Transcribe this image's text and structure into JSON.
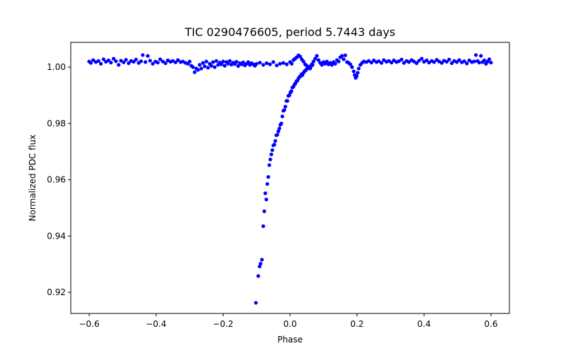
{
  "chart_data": {
    "type": "scatter",
    "title": "TIC 0290476605, period 5.7443 days",
    "xlabel": "Phase",
    "ylabel": "Normalized PDC flux",
    "xlim": [
      -0.655,
      0.655
    ],
    "ylim": [
      0.9125,
      1.0088
    ],
    "xticks": [
      -0.6,
      -0.4,
      -0.2,
      0.0,
      0.2,
      0.4,
      0.6
    ],
    "xtick_labels": [
      "−0.6",
      "−0.4",
      "−0.2",
      "0.0",
      "0.2",
      "0.4",
      "0.6"
    ],
    "yticks": [
      0.92,
      0.94,
      0.96,
      0.98,
      1.0
    ],
    "ytick_labels": [
      "0.92",
      "0.94",
      "0.96",
      "0.98",
      "1.00"
    ],
    "grid": false,
    "marker_color": "#0000ff",
    "series": [
      {
        "points": [
          [
            -0.6,
            1.002
          ],
          [
            -0.595,
            1.0015
          ],
          [
            -0.588,
            1.0025
          ],
          [
            -0.58,
            1.0018
          ],
          [
            -0.572,
            1.0022
          ],
          [
            -0.565,
            1.0012
          ],
          [
            -0.557,
            1.0028
          ],
          [
            -0.55,
            1.0019
          ],
          [
            -0.542,
            1.0024
          ],
          [
            -0.535,
            1.0016
          ],
          [
            -0.527,
            1.003
          ],
          [
            -0.52,
            1.0021
          ],
          [
            -0.512,
            1.0008
          ],
          [
            -0.505,
            1.0023
          ],
          [
            -0.497,
            1.0017
          ],
          [
            -0.49,
            1.0026
          ],
          [
            -0.482,
            1.0014
          ],
          [
            -0.475,
            1.0022
          ],
          [
            -0.467,
            1.0019
          ],
          [
            -0.46,
            1.0027
          ],
          [
            -0.452,
            1.0015
          ],
          [
            -0.445,
            1.0021
          ],
          [
            -0.44,
            1.0043
          ],
          [
            -0.432,
            1.0018
          ],
          [
            -0.425,
            1.004
          ],
          [
            -0.418,
            1.0023
          ],
          [
            -0.41,
            1.0012
          ],
          [
            -0.402,
            1.002
          ],
          [
            -0.395,
            1.0016
          ],
          [
            -0.388,
            1.0028
          ],
          [
            -0.38,
            1.002
          ],
          [
            -0.372,
            1.0014
          ],
          [
            -0.365,
            1.0024
          ],
          [
            -0.357,
            1.0019
          ],
          [
            -0.35,
            1.0022
          ],
          [
            -0.342,
            1.0017
          ],
          [
            -0.335,
            1.0025
          ],
          [
            -0.327,
            1.0018
          ],
          [
            -0.32,
            1.002
          ],
          [
            -0.312,
            1.0015
          ],
          [
            -0.305,
            1.0012
          ],
          [
            -0.3,
            1.002
          ],
          [
            -0.295,
            1.0005
          ],
          [
            -0.29,
            1.0
          ],
          [
            -0.285,
            0.9982
          ],
          [
            -0.28,
            0.9995
          ],
          [
            -0.275,
            0.999
          ],
          [
            -0.27,
            1.0008
          ],
          [
            -0.265,
            0.9995
          ],
          [
            -0.26,
            1.0015
          ],
          [
            -0.255,
            1.0003
          ],
          [
            -0.25,
            1.002
          ],
          [
            -0.245,
            0.9998
          ],
          [
            -0.24,
            1.0012
          ],
          [
            -0.235,
            1.0005
          ],
          [
            -0.23,
            1.0018
          ],
          [
            -0.225,
            1.0
          ],
          [
            -0.22,
            1.0022
          ],
          [
            -0.215,
            1.0008
          ],
          [
            -0.21,
            1.0016
          ],
          [
            -0.205,
            1.001
          ],
          [
            -0.2,
            1.002
          ],
          [
            -0.195,
            1.0005
          ],
          [
            -0.19,
            1.0018
          ],
          [
            -0.185,
            1.0012
          ],
          [
            -0.18,
            1.0022
          ],
          [
            -0.175,
            1.0009
          ],
          [
            -0.17,
            1.0016
          ],
          [
            -0.165,
            1.0011
          ],
          [
            -0.16,
            1.0019
          ],
          [
            -0.155,
            1.0004
          ],
          [
            -0.15,
            1.0014
          ],
          [
            -0.145,
            1.001
          ],
          [
            -0.14,
            1.0017
          ],
          [
            -0.135,
            1.0006
          ],
          [
            -0.13,
            1.0012
          ],
          [
            -0.125,
            1.0018
          ],
          [
            -0.12,
            1.0008
          ],
          [
            -0.115,
            1.0014
          ],
          [
            -0.11,
            1.001
          ],
          [
            -0.105,
            1.0005
          ],
          [
            -0.102,
            0.9163
          ],
          [
            -0.095,
            0.9258
          ],
          [
            -0.091,
            0.9292
          ],
          [
            -0.088,
            0.9302
          ],
          [
            -0.084,
            0.9316
          ],
          [
            -0.08,
            0.9435
          ],
          [
            -0.077,
            0.9488
          ],
          [
            -0.074,
            0.9552
          ],
          [
            -0.071,
            0.953
          ],
          [
            -0.068,
            0.9585
          ],
          [
            -0.065,
            0.961
          ],
          [
            -0.062,
            0.9652
          ],
          [
            -0.059,
            0.9672
          ],
          [
            -0.056,
            0.969
          ],
          [
            -0.053,
            0.9705
          ],
          [
            -0.05,
            0.9722
          ],
          [
            -0.047,
            0.9725
          ],
          [
            -0.044,
            0.9738
          ],
          [
            -0.041,
            0.9758
          ],
          [
            -0.038,
            0.976
          ],
          [
            -0.035,
            0.9772
          ],
          [
            -0.032,
            0.9782
          ],
          [
            -0.029,
            0.9795
          ],
          [
            -0.026,
            0.98
          ],
          [
            -0.023,
            0.9825
          ],
          [
            -0.02,
            0.9845
          ],
          [
            -0.017,
            0.9848
          ],
          [
            -0.014,
            0.986
          ],
          [
            -0.011,
            0.988
          ],
          [
            -0.008,
            0.988
          ],
          [
            -0.005,
            0.9898
          ],
          [
            -0.002,
            0.99
          ],
          [
            0.001,
            0.991
          ],
          [
            0.004,
            0.9915
          ],
          [
            0.007,
            0.9928
          ],
          [
            0.01,
            0.993
          ],
          [
            0.013,
            0.9938
          ],
          [
            0.016,
            0.9942
          ],
          [
            0.019,
            0.995
          ],
          [
            0.022,
            0.9952
          ],
          [
            0.025,
            0.996
          ],
          [
            0.028,
            0.9965
          ],
          [
            0.031,
            0.9968
          ],
          [
            0.034,
            0.9975
          ],
          [
            0.037,
            0.9972
          ],
          [
            0.04,
            0.998
          ],
          [
            0.043,
            0.9985
          ],
          [
            0.046,
            0.9988
          ],
          [
            0.049,
            0.9992
          ],
          [
            0.052,
            0.9995
          ],
          [
            0.055,
            0.9998
          ],
          [
            0.058,
            1.0
          ],
          [
            0.061,
            1.0003
          ],
          [
            0.064,
            1.0005
          ],
          [
            0.067,
            1.0008
          ],
          [
            -0.1,
            1.0012
          ],
          [
            -0.09,
            1.0016
          ],
          [
            -0.08,
            1.0008
          ],
          [
            -0.07,
            1.0014
          ],
          [
            -0.06,
            1.001
          ],
          [
            -0.05,
            1.0018
          ],
          [
            -0.04,
            1.0006
          ],
          [
            -0.03,
            1.0012
          ],
          [
            -0.02,
            1.0015
          ],
          [
            -0.01,
            1.001
          ],
          [
            0.0,
            1.0018
          ],
          [
            0.005,
            1.0012
          ],
          [
            0.01,
            1.0025
          ],
          [
            0.015,
            1.003
          ],
          [
            0.02,
            1.0035
          ],
          [
            0.025,
            1.0042
          ],
          [
            0.03,
            1.0038
          ],
          [
            0.035,
            1.0028
          ],
          [
            0.04,
            1.002
          ],
          [
            0.045,
            1.001
          ],
          [
            0.05,
            1.0005
          ],
          [
            0.055,
            1.0
          ],
          [
            0.06,
            0.9995
          ],
          [
            0.065,
            1.001
          ],
          [
            0.07,
            1.002
          ],
          [
            0.075,
            1.003
          ],
          [
            0.08,
            1.004
          ],
          [
            0.085,
            1.0025
          ],
          [
            0.09,
            1.0015
          ],
          [
            0.095,
            1.0008
          ],
          [
            0.1,
            1.0018
          ],
          [
            0.105,
            1.0012
          ],
          [
            0.11,
            1.002
          ],
          [
            0.115,
            1.001
          ],
          [
            0.12,
            1.0015
          ],
          [
            0.125,
            1.0008
          ],
          [
            0.13,
            1.0018
          ],
          [
            0.135,
            1.0012
          ],
          [
            0.14,
            1.0025
          ],
          [
            0.145,
            1.002
          ],
          [
            0.15,
            1.0035
          ],
          [
            0.155,
            1.004
          ],
          [
            0.16,
            1.0028
          ],
          [
            0.165,
            1.0042
          ],
          [
            0.17,
            1.0018
          ],
          [
            0.175,
            1.0015
          ],
          [
            0.18,
            1.001
          ],
          [
            0.185,
            1.0
          ],
          [
            0.19,
            0.9985
          ],
          [
            0.193,
            0.9972
          ],
          [
            0.196,
            0.9962
          ],
          [
            0.199,
            0.9968
          ],
          [
            0.202,
            0.998
          ],
          [
            0.205,
            0.9995
          ],
          [
            0.21,
            1.0008
          ],
          [
            0.215,
            1.0015
          ],
          [
            0.22,
            1.002
          ],
          [
            0.228,
            1.0018
          ],
          [
            0.235,
            1.0022
          ],
          [
            0.243,
            1.0016
          ],
          [
            0.25,
            1.0024
          ],
          [
            0.258,
            1.0018
          ],
          [
            0.265,
            1.0021
          ],
          [
            0.273,
            1.0015
          ],
          [
            0.28,
            1.0025
          ],
          [
            0.288,
            1.0019
          ],
          [
            0.295,
            1.0022
          ],
          [
            0.303,
            1.0016
          ],
          [
            0.31,
            1.0024
          ],
          [
            0.318,
            1.0018
          ],
          [
            0.325,
            1.0021
          ],
          [
            0.333,
            1.0027
          ],
          [
            0.34,
            1.0015
          ],
          [
            0.348,
            1.0022
          ],
          [
            0.355,
            1.0018
          ],
          [
            0.363,
            1.0025
          ],
          [
            0.37,
            1.002
          ],
          [
            0.378,
            1.0014
          ],
          [
            0.385,
            1.0023
          ],
          [
            0.393,
            1.003
          ],
          [
            0.4,
            1.0019
          ],
          [
            0.408,
            1.0024
          ],
          [
            0.415,
            1.0016
          ],
          [
            0.423,
            1.0022
          ],
          [
            0.43,
            1.0018
          ],
          [
            0.438,
            1.0026
          ],
          [
            0.445,
            1.002
          ],
          [
            0.453,
            1.0015
          ],
          [
            0.46,
            1.0023
          ],
          [
            0.468,
            1.0019
          ],
          [
            0.475,
            1.0027
          ],
          [
            0.483,
            1.0014
          ],
          [
            0.49,
            1.0022
          ],
          [
            0.498,
            1.0018
          ],
          [
            0.505,
            1.0025
          ],
          [
            0.513,
            1.0017
          ],
          [
            0.52,
            1.0021
          ],
          [
            0.528,
            1.0013
          ],
          [
            0.535,
            1.0024
          ],
          [
            0.543,
            1.0018
          ],
          [
            0.55,
            1.002
          ],
          [
            0.555,
            1.0043
          ],
          [
            0.56,
            1.0022
          ],
          [
            0.565,
            1.0016
          ],
          [
            0.57,
            1.004
          ],
          [
            0.575,
            1.0018
          ],
          [
            0.58,
            1.0024
          ],
          [
            0.585,
            1.0012
          ],
          [
            0.59,
            1.002
          ],
          [
            0.595,
            1.0028
          ],
          [
            0.6,
            1.0016
          ]
        ]
      }
    ]
  }
}
